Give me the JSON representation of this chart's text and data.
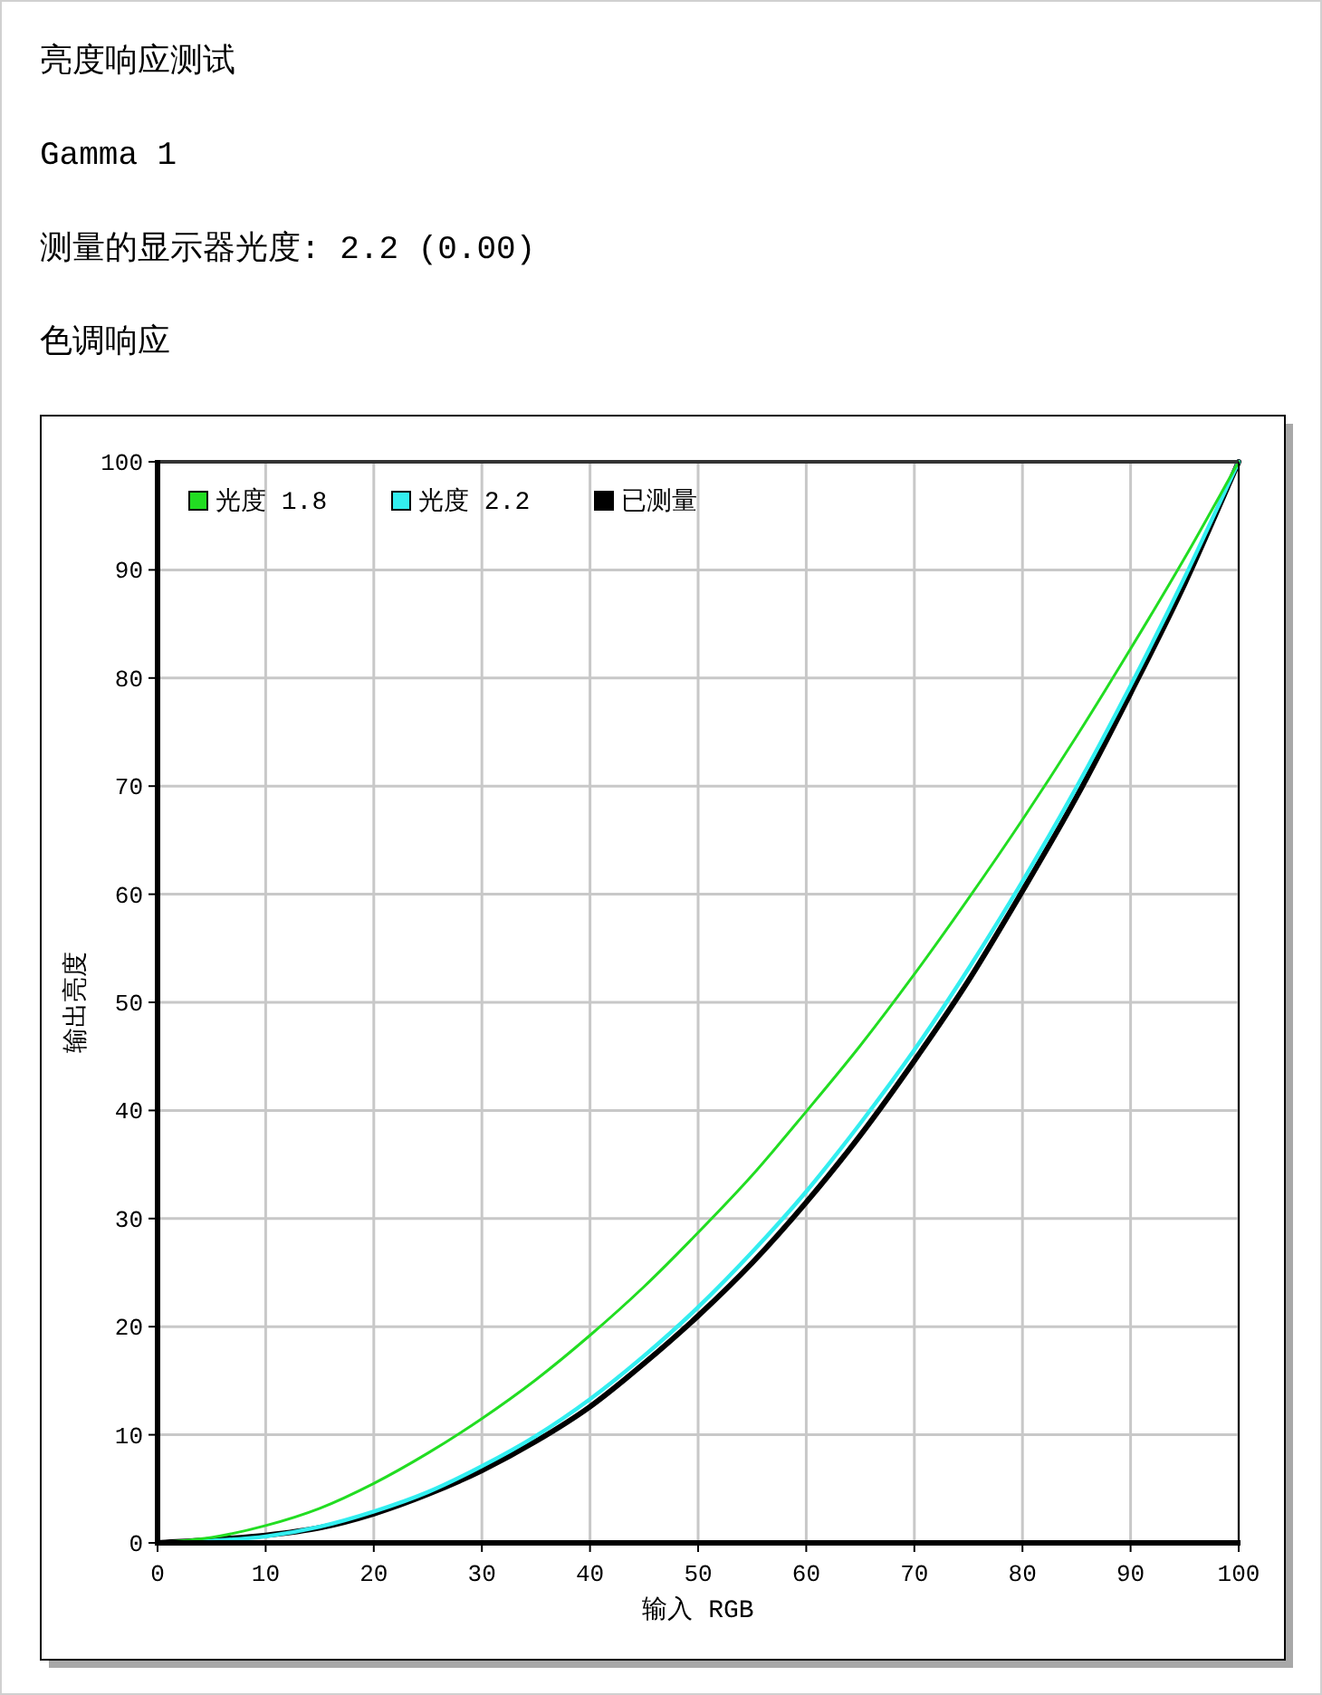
{
  "chart_data": {
    "type": "line",
    "title": "亮度响应测试",
    "annotations": [
      "Gamma 1",
      "测量的显示器光度: 2.2 (0.00)",
      "色调响应"
    ],
    "xlabel": "输入 RGB",
    "ylabel": "输出亮度",
    "x": [
      0,
      5,
      10,
      15,
      20,
      25,
      30,
      35,
      40,
      45,
      50,
      55,
      60,
      65,
      70,
      75,
      80,
      85,
      90,
      95,
      100
    ],
    "series": [
      {
        "name": "光度 1.8",
        "color": "#22dd22",
        "values": [
          0,
          0.5,
          1.6,
          3.2,
          5.5,
          8.3,
          11.5,
          15.1,
          19.2,
          23.7,
          28.7,
          34.0,
          39.9,
          46.0,
          52.6,
          59.6,
          66.9,
          74.6,
          82.7,
          91.1,
          100
        ]
      },
      {
        "name": "光度 2.2",
        "color": "#33eef0",
        "values": [
          0,
          0.2,
          0.6,
          1.5,
          2.9,
          4.7,
          7.1,
          9.9,
          13.3,
          17.3,
          21.8,
          26.9,
          32.5,
          38.8,
          45.6,
          53.1,
          61.2,
          69.9,
          79.3,
          89.3,
          100
        ]
      },
      {
        "name": "已测量",
        "color": "#000000",
        "values": [
          0,
          0.3,
          0.7,
          1.4,
          2.7,
          4.5,
          6.7,
          9.4,
          12.6,
          16.6,
          21.0,
          25.9,
          31.5,
          37.7,
          44.6,
          52.0,
          60.3,
          69.0,
          78.6,
          88.7,
          100
        ]
      }
    ],
    "xlim": [
      0,
      100
    ],
    "ylim": [
      0,
      100
    ],
    "xticks": [
      0,
      10,
      20,
      30,
      40,
      50,
      60,
      70,
      80,
      90,
      100
    ],
    "yticks": [
      0,
      10,
      20,
      30,
      40,
      50,
      60,
      70,
      80,
      90,
      100
    ],
    "grid": true,
    "legend": "top left",
    "marker": "none",
    "line_style": "solid"
  }
}
